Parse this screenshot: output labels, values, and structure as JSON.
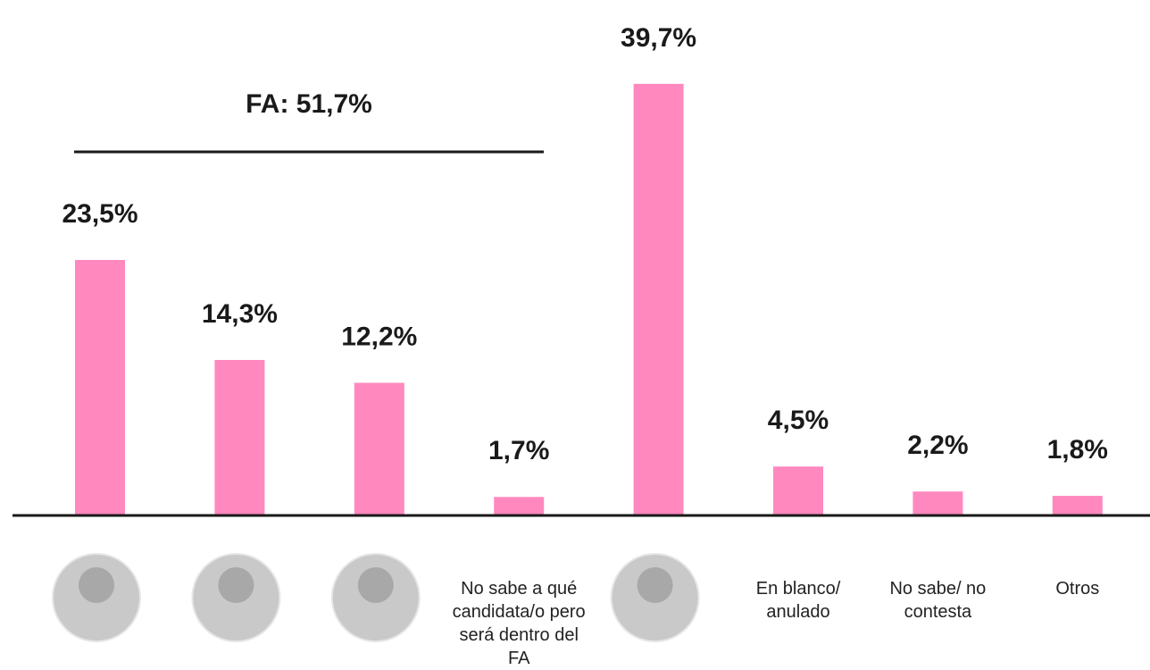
{
  "chart_data": {
    "type": "bar",
    "annotation": "FA: 51,7%",
    "categories": [
      null,
      null,
      null,
      "No sabe a qué candidata/o pero será dentro del FA",
      null,
      "En blanco/ anulado",
      "No sabe/ no contesta",
      "Otros"
    ],
    "values": [
      23.5,
      14.3,
      12.2,
      1.7,
      39.7,
      4.5,
      2.2,
      1.8
    ],
    "value_labels": [
      "23,5%",
      "14,3%",
      "12,2%",
      "1,7%",
      "39,7%",
      "4,5%",
      "2,2%",
      "1,8%"
    ],
    "color": "#ff88bf"
  }
}
